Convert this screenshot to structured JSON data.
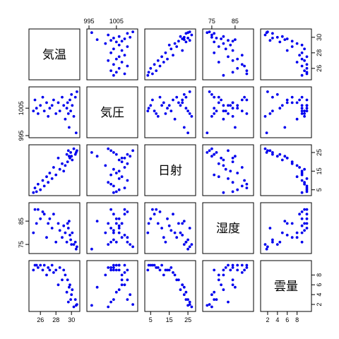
{
  "chart_data": {
    "type": "scatter",
    "subtype": "scatterplot-matrix",
    "title": "",
    "point_color": "#0000ee",
    "variables": [
      {
        "name": "気温",
        "range": [
          24.8,
          30.8
        ],
        "ticks": [
          26,
          28,
          30
        ],
        "axis_side": "right"
      },
      {
        "name": "気圧",
        "range": [
          995,
          1012
        ],
        "ticks": [
          995,
          1005
        ],
        "axis_side": "left"
      },
      {
        "name": "日射",
        "range": [
          3,
          28
        ],
        "ticks": [
          5,
          15,
          25
        ],
        "axis_side": "right"
      },
      {
        "name": "湿度",
        "range": [
          72,
          92
        ],
        "ticks": [
          75,
          85
        ],
        "axis_side": "left"
      },
      {
        "name": "雲量",
        "range": [
          1,
          10.5
        ],
        "ticks": [
          2,
          4,
          6,
          8
        ],
        "axis_side": "right"
      }
    ],
    "top_ticks": [
      {
        "col": 1,
        "values": [
          995,
          1005
        ]
      },
      {
        "col": 3,
        "values": [
          75,
          85
        ]
      }
    ],
    "bottom_ticks": [
      {
        "col": 0,
        "values": [
          26,
          28,
          30
        ]
      },
      {
        "col": 2,
        "values": [
          5,
          15,
          25
        ]
      },
      {
        "col": 4,
        "values": [
          2,
          4,
          6,
          8
        ]
      }
    ],
    "left_ticks": [
      {
        "row": 1,
        "values": [
          995,
          1005
        ]
      },
      {
        "row": 3,
        "values": [
          75,
          85
        ]
      }
    ],
    "right_ticks": [
      {
        "row": 0,
        "values": [
          26,
          28,
          30
        ]
      },
      {
        "row": 2,
        "values": [
          5,
          15,
          25
        ]
      },
      {
        "row": 4,
        "values": [
          2,
          4,
          6,
          8
        ]
      }
    ],
    "observations": [
      {
        "気温": 30.7,
        "気圧": 1011.0,
        "日射": 26.0,
        "湿度": 74.0,
        "雲量": 2.0
      },
      {
        "気温": 30.5,
        "気圧": 1009.0,
        "日射": 24.0,
        "湿度": 76.0,
        "雲量": 3.0
      },
      {
        "気温": 30.3,
        "気圧": 1002.0,
        "日射": 27.0,
        "湿度": 75.0,
        "雲量": 1.5
      },
      {
        "気温": 30.1,
        "気圧": 1006.0,
        "日射": 21.0,
        "湿度": 80.0,
        "雲量": 5.0
      },
      {
        "気温": 30.0,
        "気圧": 1010.0,
        "日射": 23.0,
        "湿度": 75.0,
        "雲量": 4.0
      },
      {
        "気温": 29.9,
        "気圧": 1004.0,
        "日射": 25.0,
        "湿度": 77.0,
        "雲量": 3.0
      },
      {
        "気温": 29.8,
        "気圧": 1008.0,
        "日射": 22.0,
        "湿度": 79.0,
        "雲量": 6.0
      },
      {
        "気温": 29.6,
        "気圧": 1003.0,
        "日射": 26.0,
        "湿度": 82.0,
        "雲量": 2.5
      },
      {
        "気温": 29.5,
        "気圧": 1007.0,
        "日射": 20.0,
        "湿度": 84.0,
        "雲量": 7.0
      },
      {
        "気温": 29.4,
        "気圧": 1005.0,
        "日射": 24.0,
        "湿度": 76.0,
        "雲量": 4.5
      },
      {
        "気温": 29.2,
        "気圧": 1001.0,
        "日射": 18.0,
        "湿度": 80.0,
        "雲量": 8.0
      },
      {
        "気温": 29.0,
        "気圧": 1006.0,
        "日射": 15.0,
        "湿度": 83.0,
        "雲量": 9.0
      },
      {
        "気温": 28.8,
        "気圧": 1009.0,
        "日射": 19.0,
        "湿度": 78.0,
        "雲量": 7.0
      },
      {
        "気温": 28.5,
        "気圧": 1004.0,
        "日射": 16.0,
        "湿度": 81.0,
        "雲量": 9.5
      },
      {
        "気温": 28.3,
        "気圧": 1007.0,
        "日射": 22.0,
        "湿度": 84.0,
        "雲量": 6.0
      },
      {
        "気温": 28.0,
        "気圧": 1003.0,
        "日射": 13.0,
        "湿度": 76.0,
        "雲量": 9.0
      },
      {
        "気温": 27.7,
        "気圧": 1008.0,
        "日射": 17.0,
        "湿度": 88.0,
        "雲量": 8.5
      },
      {
        "気温": 27.5,
        "気圧": 1006.0,
        "日射": 11.0,
        "湿度": 82.0,
        "雲量": 10.0
      },
      {
        "気温": 27.2,
        "気圧": 1005.0,
        "日射": 14.0,
        "湿度": 86.0,
        "雲量": 9.0
      },
      {
        "気温": 27.0,
        "気圧": 1002.0,
        "日射": 9.0,
        "湿度": 84.0,
        "雲量": 9.5
      },
      {
        "気温": 26.8,
        "気圧": 1007.0,
        "日射": 12.0,
        "湿度": 78.0,
        "雲量": 8.0
      },
      {
        "気温": 26.5,
        "気圧": 1004.0,
        "日射": 7.0,
        "湿度": 88.0,
        "雲量": 10.0
      },
      {
        "気温": 26.3,
        "気圧": 1009.0,
        "日射": 10.0,
        "湿度": 89.0,
        "雲量": 9.0
      },
      {
        "気温": 26.0,
        "気圧": 1006.0,
        "日射": 5.0,
        "湿度": 86.0,
        "雲量": 10.0
      },
      {
        "気温": 25.7,
        "気圧": 1003.0,
        "日射": 8.0,
        "湿度": 90.0,
        "雲量": 9.5
      },
      {
        "気温": 25.5,
        "気圧": 1005.0,
        "日射": 4.0,
        "湿度": 84.0,
        "雲量": 10.0
      },
      {
        "気温": 25.3,
        "気圧": 1008.0,
        "日射": 6.0,
        "湿度": 90.0,
        "雲量": 10.0
      },
      {
        "気温": 25.1,
        "気圧": 1004.0,
        "日射": 3.5,
        "湿度": 80.0,
        "雲量": 9.0
      },
      {
        "気温": 30.6,
        "気圧": 996.0,
        "日射": 25.0,
        "湿度": 73.0,
        "雲量": 1.8
      },
      {
        "気温": 29.7,
        "気圧": 998.0,
        "日射": 23.0,
        "湿度": 85.0,
        "雲量": 5.5
      }
    ]
  }
}
